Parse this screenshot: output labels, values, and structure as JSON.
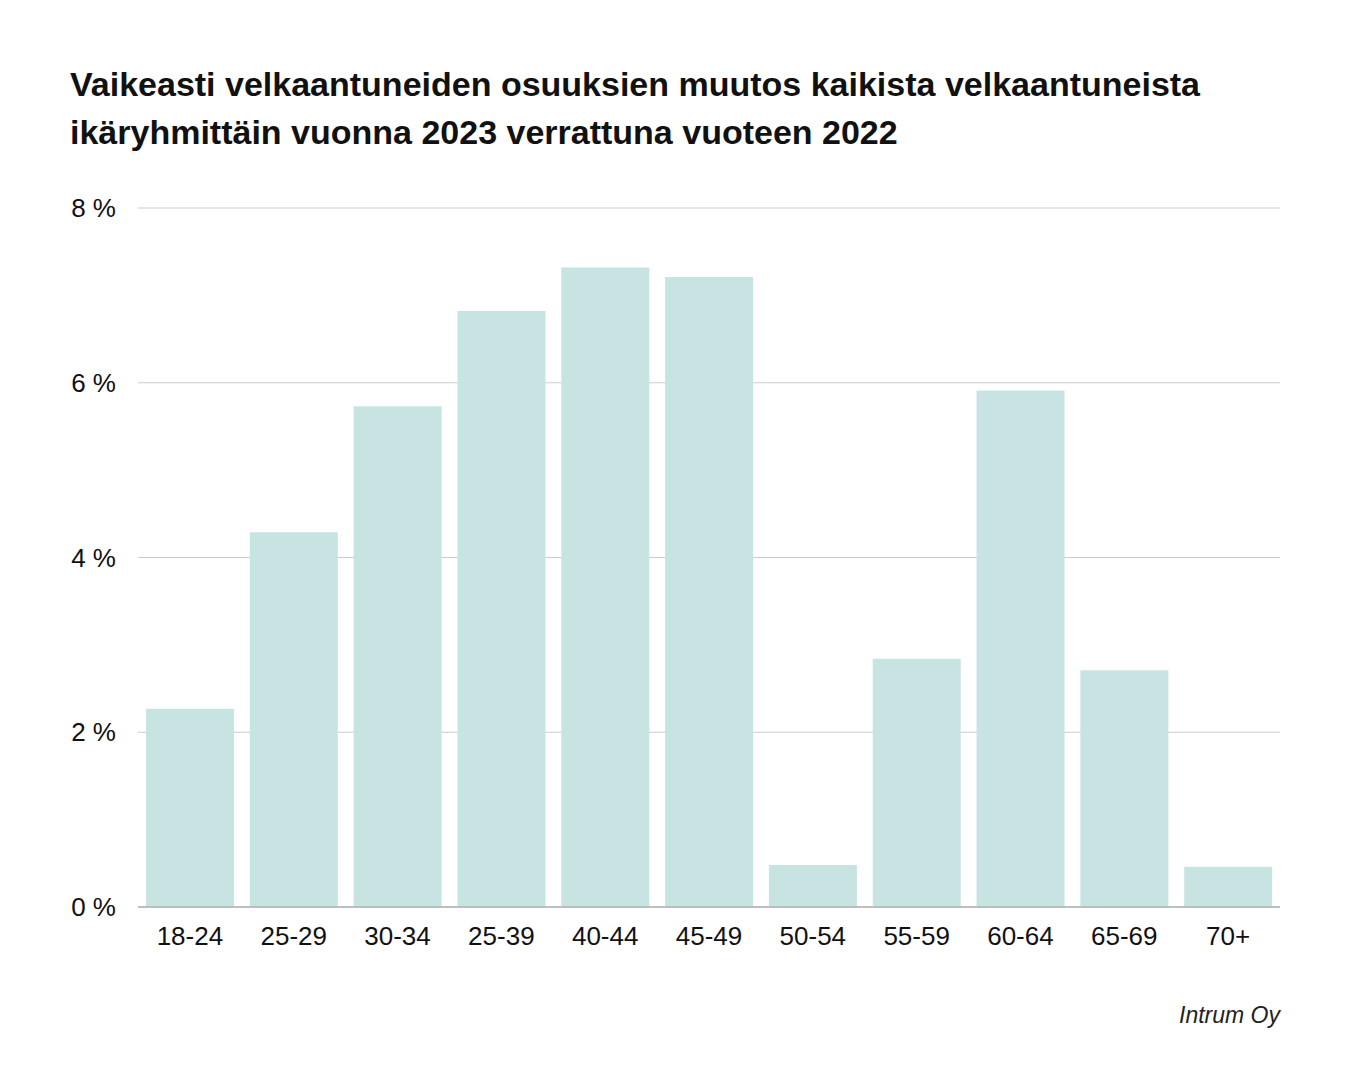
{
  "chart_data": {
    "type": "bar",
    "title": "Vaikeasti velkaantuneiden osuuksien muutos kaikista velkaantuneista ikäryhmittäin vuonna 2023 verrattuna vuoteen 2022",
    "categories": [
      "18-24",
      "25-29",
      "30-34",
      "25-39",
      "40-44",
      "45-49",
      "50-54",
      "55-59",
      "60-64",
      "65-69",
      "70+"
    ],
    "values": [
      2.27,
      4.29,
      5.73,
      6.82,
      7.32,
      7.21,
      0.48,
      2.84,
      5.91,
      2.71,
      0.46
    ],
    "color": "#c8e4e2",
    "ylim": [
      0,
      8
    ],
    "yticks": [
      {
        "value": 0,
        "label": "0 %"
      },
      {
        "value": 2,
        "label": "2 %"
      },
      {
        "value": 4,
        "label": "4 %"
      },
      {
        "value": 6,
        "label": "6 %"
      },
      {
        "value": 8,
        "label": "8 %"
      }
    ],
    "grid": true,
    "source": "Intrum Oy"
  }
}
